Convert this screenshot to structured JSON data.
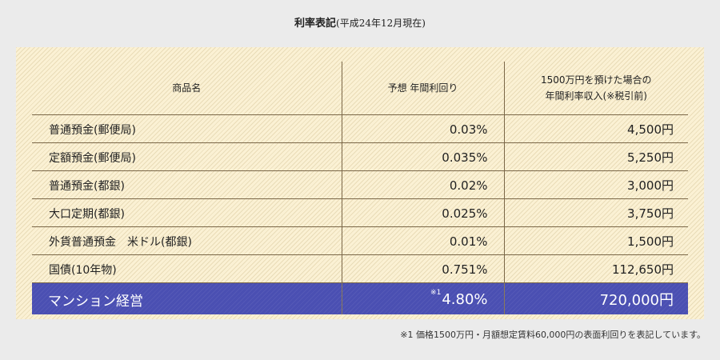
{
  "title": {
    "main": "利率表記",
    "sub": "(平成24年12月現在)"
  },
  "table": {
    "headers": {
      "product": "商品名",
      "yield": "予想 年間利回り",
      "income_line1": "1500万円を預けた場合の",
      "income_line2": "年間利率収入(※税引前)"
    },
    "rows": [
      {
        "product": "普通預金(郵便局)",
        "yield": "0.03%",
        "income": "4,500円"
      },
      {
        "product": "定額預金(郵便局)",
        "yield": "0.035%",
        "income": "5,250円"
      },
      {
        "product": "普通預金(都銀)",
        "yield": "0.02%",
        "income": "3,000円"
      },
      {
        "product": "大口定期(都銀)",
        "yield": "0.025%",
        "income": "3,750円"
      },
      {
        "product": "外貨普通預金　米ドル(都銀)",
        "yield": "0.01%",
        "income": "1,500円"
      },
      {
        "product": "国債(10年物)",
        "yield": "0.751%",
        "income": "112,650円"
      }
    ],
    "highlight": {
      "product": "マンション経営",
      "note_mark": "※1",
      "yield": "4.80%",
      "income": "720,000円"
    }
  },
  "footnote": "※1 価格1500万円・月額想定賃料60,000円の表面利回りを表記しています。",
  "colors": {
    "panel_bg": "#fbf1d4",
    "highlight_bg": "#4a4fb2",
    "rule": "#7a6748",
    "page_bg": "#ebebeb"
  }
}
